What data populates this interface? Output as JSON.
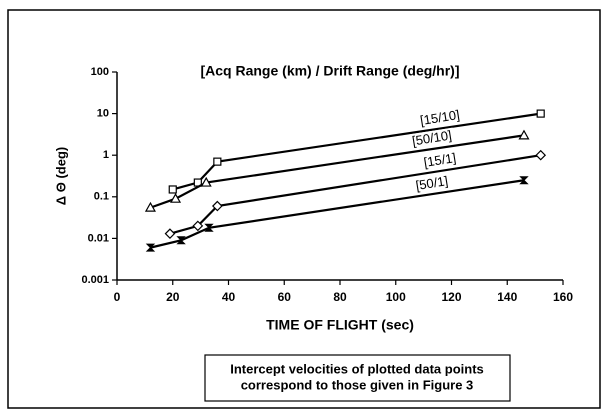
{
  "chart_data": {
    "type": "line",
    "title": "[Acq Range (km) / Drift Range (deg/hr)]",
    "x_label": "TIME OF FLIGHT (sec)",
    "y_label": "Δ Θ (deg)",
    "xlim": [
      0,
      160
    ],
    "xticks": [
      0,
      20,
      40,
      60,
      80,
      100,
      120,
      140,
      160
    ],
    "ylim": [
      0.001,
      100
    ],
    "yscale": "log",
    "yticks": [
      {
        "value": 0.001,
        "label": "0.001"
      },
      {
        "value": 0.01,
        "label": "0.01"
      },
      {
        "value": 0.1,
        "label": "0.1"
      },
      1,
      10,
      100
    ],
    "series": [
      {
        "name": "[15/10]",
        "color": "#000000",
        "marker": "square",
        "x": [
          20,
          29,
          36,
          152
        ],
        "values": [
          0.15,
          0.22,
          0.7,
          10
        ]
      },
      {
        "name": "[50/10]",
        "color": "#000000",
        "marker": "triangle",
        "x": [
          12,
          21,
          32,
          146
        ],
        "values": [
          0.055,
          0.09,
          0.22,
          3
        ]
      },
      {
        "name": "[15/1]",
        "color": "#000000",
        "marker": "diamond",
        "x": [
          19,
          29,
          36,
          152
        ],
        "values": [
          0.013,
          0.02,
          0.06,
          1
        ]
      },
      {
        "name": "[50/1]",
        "color": "#000000",
        "marker": "bowtie",
        "x": [
          12,
          23,
          33,
          146
        ],
        "values": [
          0.006,
          0.009,
          0.018,
          0.25
        ]
      }
    ],
    "note_lines": [
      "Intercept velocities of plotted data points",
      "correspond to those given in Figure 3"
    ]
  }
}
